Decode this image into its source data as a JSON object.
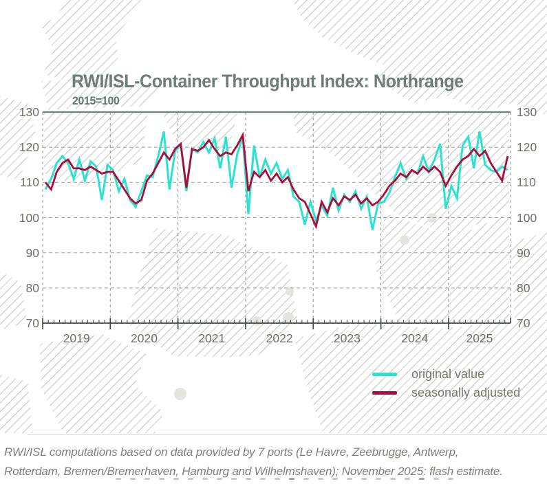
{
  "header": {
    "title": "RWI/ISL-Container Throughput Index: Northrange",
    "subtitle": "2015=100"
  },
  "chart_data": {
    "type": "line",
    "title": "RWI/ISL-Container Throughput Index: Northrange",
    "subtitle": "2015=100",
    "x_frequency": "monthly",
    "x_start": "2019-01",
    "x_end": "2025-11",
    "x_tick_years": [
      "2019",
      "2020",
      "2021",
      "2022",
      "2023",
      "2024",
      "2025"
    ],
    "ylim": [
      70,
      130
    ],
    "y_ticks": [
      70,
      80,
      90,
      100,
      110,
      120,
      130
    ],
    "grid": "dashed",
    "legend_position": "bottom-right",
    "series": [
      {
        "name": "original value",
        "color": "#2be2d1",
        "values": [
          108,
          111,
          115.5,
          117.5,
          115.5,
          111,
          116.5,
          110.5,
          116,
          114.5,
          105,
          115,
          113.5,
          107.5,
          111,
          105,
          103,
          107.5,
          112,
          111.5,
          117.5,
          124.5,
          108,
          119,
          120.5,
          107.5,
          119.5,
          118.5,
          121.5,
          118.5,
          122.5,
          114,
          123,
          108.5,
          118,
          123,
          101,
          120.5,
          111.5,
          116.5,
          112.5,
          115.5,
          111,
          113.5,
          106,
          104.5,
          98,
          104.5,
          99,
          103.5,
          100.5,
          108.5,
          102,
          106.5,
          104.5,
          107.5,
          102.5,
          106,
          96.5,
          104,
          104.5,
          107,
          111.5,
          115.5,
          111,
          113.5,
          112.5,
          117.5,
          113,
          116.5,
          121,
          102.5,
          109,
          105.5,
          120.5,
          123,
          114,
          124.5,
          115,
          113.5,
          113,
          114.5,
          113.5
        ]
      },
      {
        "name": "seasonally adjusted",
        "color": "#ad0c39",
        "values": [
          110,
          108,
          113,
          115.5,
          116.5,
          114,
          114,
          113.5,
          114.5,
          113.5,
          112.5,
          113,
          113,
          110.5,
          108,
          105.5,
          104,
          105,
          110.5,
          112.5,
          115.5,
          118.5,
          116.5,
          119.5,
          121,
          108.5,
          119.5,
          119,
          120,
          122,
          119.5,
          117.5,
          118.5,
          118,
          120.5,
          123.5,
          107.5,
          113,
          111.5,
          113.5,
          110.5,
          112.5,
          110,
          111.5,
          108,
          105.5,
          104.5,
          101,
          97.5,
          104.5,
          101.5,
          105.5,
          103.5,
          106,
          105,
          106.5,
          104,
          105.5,
          103.5,
          104.5,
          106.5,
          109,
          110.5,
          112.5,
          111.5,
          113.5,
          112.5,
          114.5,
          113,
          114.5,
          113,
          109,
          112,
          114.5,
          116.5,
          117.5,
          119.5,
          117.5,
          119,
          115.5,
          113,
          110.5,
          117.5
        ]
      }
    ]
  },
  "footer": {
    "line1": "RWI/ISL computations based on data provided by 7 ports (Le Havre, Zeebrugge, Antwerp,",
    "line2": "Rotterdam, Bremen/Bremerhaven, Hamburg and Wilhelmshaven); November 2025: flash estimate."
  },
  "decor": {
    "bottom_marks_count": 24
  }
}
